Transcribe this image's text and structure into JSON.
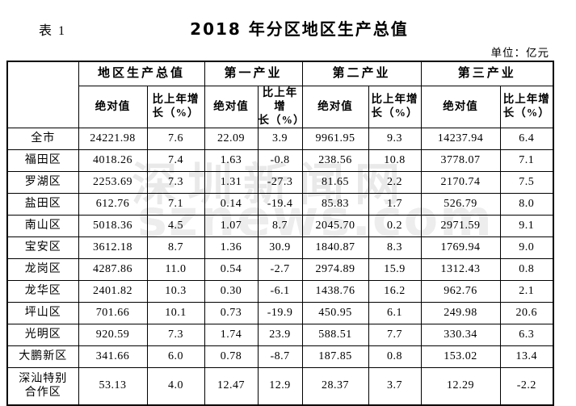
{
  "page": {
    "table_label": "表 1",
    "title": "2018 年分区地区生产总值",
    "unit_note": "单位：亿元"
  },
  "colors": {
    "text": "#000000",
    "border": "#000000",
    "background": "#ffffff",
    "watermark_gray": "#e9e9e9"
  },
  "watermark": {
    "line1": "深圳新闻网",
    "line2": "sznews.com"
  },
  "table": {
    "corner_label": "",
    "column_groups": [
      {
        "label": "地区生产总值",
        "columns": [
          "绝对值",
          "比上年增长（%）"
        ]
      },
      {
        "label": "第一产业",
        "columns": [
          "绝对值",
          "比上年增长（%）"
        ]
      },
      {
        "label": "第二产业",
        "columns": [
          "绝对值",
          "比上年增长（%）"
        ]
      },
      {
        "label": "第三产业",
        "columns": [
          "绝对值",
          "比上年增长（%）"
        ]
      }
    ],
    "sub_headers": {
      "absolute": "绝对值",
      "growth_line1": "比上年增",
      "growth_line2": "长（%）"
    },
    "rows": [
      {
        "region": "全市",
        "values": [
          "24221.98",
          "7.6",
          "22.09",
          "3.9",
          "9961.95",
          "9.3",
          "14237.94",
          "6.4"
        ]
      },
      {
        "region": "福田区",
        "values": [
          "4018.26",
          "7.4",
          "1.63",
          "-0.8",
          "238.56",
          "10.8",
          "3778.07",
          "7.1"
        ]
      },
      {
        "region": "罗湖区",
        "values": [
          "2253.69",
          "7.3",
          "1.31",
          "-27.3",
          "81.65",
          "2.2",
          "2170.74",
          "7.5"
        ]
      },
      {
        "region": "盐田区",
        "values": [
          "612.76",
          "7.1",
          "0.14",
          "-19.4",
          "85.83",
          "1.7",
          "526.79",
          "8.0"
        ]
      },
      {
        "region": "南山区",
        "values": [
          "5018.36",
          "4.5",
          "1.07",
          "8.7",
          "2045.70",
          "0.2",
          "2971.59",
          "9.1"
        ]
      },
      {
        "region": "宝安区",
        "values": [
          "3612.18",
          "8.7",
          "1.36",
          "30.9",
          "1840.87",
          "8.3",
          "1769.94",
          "9.0"
        ]
      },
      {
        "region": "龙岗区",
        "values": [
          "4287.86",
          "11.0",
          "0.54",
          "-2.7",
          "2974.89",
          "15.9",
          "1312.43",
          "0.8"
        ]
      },
      {
        "region": "龙华区",
        "values": [
          "2401.82",
          "10.3",
          "0.30",
          "-6.1",
          "1438.76",
          "16.2",
          "962.76",
          "2.1"
        ]
      },
      {
        "region": "坪山区",
        "values": [
          "701.66",
          "10.1",
          "0.73",
          "-19.9",
          "450.95",
          "6.1",
          "249.98",
          "20.6"
        ]
      },
      {
        "region": "光明区",
        "values": [
          "920.59",
          "7.3",
          "1.74",
          "23.9",
          "588.51",
          "7.7",
          "330.34",
          "6.3"
        ]
      },
      {
        "region": "大鹏新区",
        "values": [
          "341.66",
          "6.0",
          "0.78",
          "-8.7",
          "187.85",
          "0.8",
          "153.02",
          "13.4"
        ]
      },
      {
        "region": "深汕特别合作区",
        "values": [
          "53.13",
          "4.0",
          "12.47",
          "12.9",
          "28.37",
          "3.7",
          "12.29",
          "-2.2"
        ]
      }
    ]
  }
}
